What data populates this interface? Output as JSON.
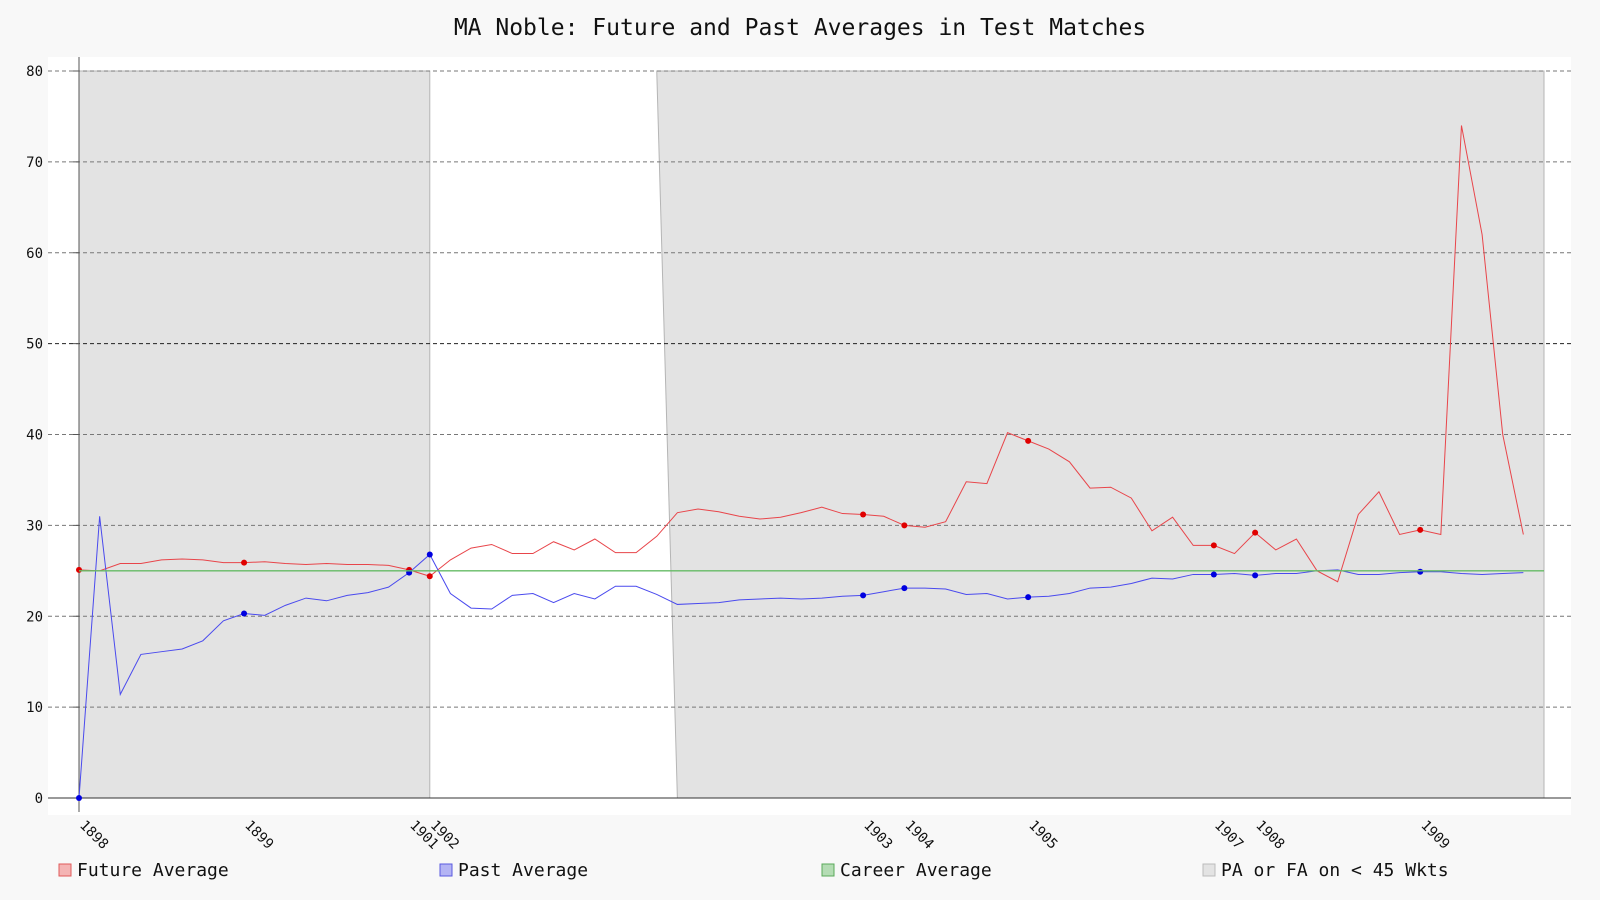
{
  "chart_data": {
    "type": "line",
    "title": "MA Noble: Future and Past Averages in Test Matches",
    "xlabel": "",
    "ylabel": "",
    "ylim": [
      0,
      80
    ],
    "y_ticks": [
      0,
      10,
      20,
      30,
      40,
      50,
      60,
      70,
      80
    ],
    "x_range": [
      0,
      71
    ],
    "x_tick_labels": [
      {
        "x": 0,
        "label": "1898"
      },
      {
        "x": 8,
        "label": "1899"
      },
      {
        "x": 16,
        "label": "1901"
      },
      {
        "x": 17,
        "label": "1902"
      },
      {
        "x": 38,
        "label": "1903"
      },
      {
        "x": 40,
        "label": "1904"
      },
      {
        "x": 46,
        "label": "1905"
      },
      {
        "x": 55,
        "label": "1907"
      },
      {
        "x": 57,
        "label": "1908"
      },
      {
        "x": 65,
        "label": "1909"
      }
    ],
    "grid": "horizontal dashed",
    "highlight_gridline": 50,
    "series": [
      {
        "name": "Future Average",
        "color": "#e8454a",
        "marker_color": "#e00000",
        "markers_at": [
          0,
          8,
          16,
          17,
          38,
          40,
          46,
          55,
          57,
          65
        ],
        "values": [
          25.1,
          25.0,
          25.8,
          25.8,
          26.2,
          26.3,
          26.2,
          25.9,
          25.9,
          26.0,
          25.8,
          25.7,
          25.8,
          25.7,
          25.7,
          25.6,
          25.1,
          24.4,
          26.2,
          27.5,
          27.9,
          26.9,
          26.9,
          28.2,
          27.3,
          28.5,
          27.0,
          27.0,
          28.8,
          31.4,
          31.8,
          31.5,
          31.0,
          30.7,
          30.9,
          31.4,
          32.0,
          31.3,
          31.2,
          31.0,
          30.0,
          29.8,
          30.4,
          34.8,
          34.6,
          40.2,
          39.3,
          38.4,
          37.0,
          34.1,
          34.2,
          33.0,
          29.4,
          30.9,
          27.8,
          27.8,
          26.9,
          29.2,
          27.3,
          28.5,
          25.0,
          23.8,
          31.2,
          33.7,
          29.0,
          29.5,
          29.0,
          74.0,
          62.0,
          40.0,
          29.0
        ]
      },
      {
        "name": "Past Average",
        "color": "#4a4aee",
        "marker_color": "#0000e0",
        "markers_at": [
          0,
          8,
          16,
          17,
          38,
          40,
          46,
          55,
          57,
          65
        ],
        "values": [
          0.0,
          31.0,
          11.4,
          15.8,
          16.1,
          16.4,
          17.3,
          19.5,
          20.3,
          20.1,
          21.2,
          22.0,
          21.7,
          22.3,
          22.6,
          23.2,
          24.8,
          26.8,
          22.5,
          20.9,
          20.8,
          22.3,
          22.5,
          21.5,
          22.5,
          21.9,
          23.3,
          23.3,
          22.4,
          21.3,
          21.4,
          21.5,
          21.8,
          21.9,
          22.0,
          21.9,
          22.0,
          22.2,
          22.3,
          22.7,
          23.1,
          23.1,
          23.0,
          22.4,
          22.5,
          21.9,
          22.1,
          22.2,
          22.5,
          23.1,
          23.2,
          23.6,
          24.2,
          24.1,
          24.6,
          24.6,
          24.7,
          24.5,
          24.7,
          24.7,
          25.0,
          25.1,
          24.6,
          24.6,
          24.8,
          24.9,
          24.9,
          24.7,
          24.6,
          24.7,
          24.8
        ]
      },
      {
        "name": "Career Average",
        "color": "#66bb66",
        "constant": 25.0
      }
    ],
    "shaded_regions": {
      "name": "PA or FA on < 45 Wkts",
      "fill": "#e3e3e3",
      "polygons": [
        {
          "top": [
            0,
            17.0
          ],
          "bottom": [
            0,
            17.0
          ]
        },
        {
          "top": [
            28.0,
            71.0
          ],
          "bottom": [
            29.0,
            71.0
          ]
        }
      ]
    },
    "legend": {
      "placement": "bottom",
      "items": [
        {
          "label": "Future Average",
          "fill": "#f4b4b4",
          "stroke": "#e05a5a"
        },
        {
          "label": "Past Average",
          "fill": "#b4b4f4",
          "stroke": "#5a5ae0"
        },
        {
          "label": "Career Average",
          "fill": "#b4dcb4",
          "stroke": "#5aaa5a"
        },
        {
          "label": "PA or FA on < 45 Wkts",
          "fill": "#e3e3e3",
          "stroke": "#bbbbbb"
        }
      ]
    }
  }
}
